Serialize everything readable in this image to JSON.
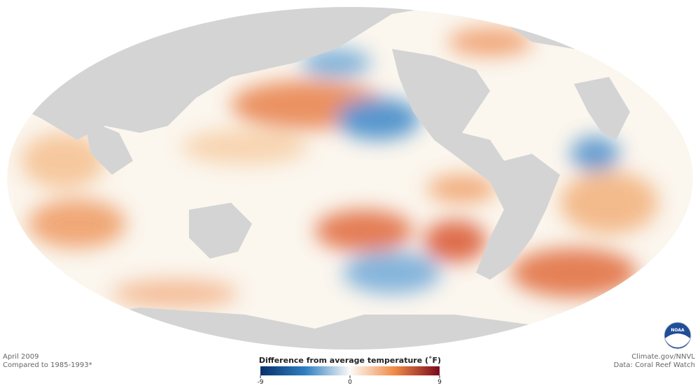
{
  "map": {
    "date": "April 2009",
    "baseline": "Compared to 1985-1993*",
    "credit": "Climate.gov/NNVL",
    "source": "Data: Coral Reef Watch",
    "logo": "NOAA",
    "colorbar": {
      "title": "Difference from average temperature (˚F)",
      "range": [
        -9,
        9
      ],
      "ticks": [
        -9,
        0,
        9
      ]
    }
  }
}
